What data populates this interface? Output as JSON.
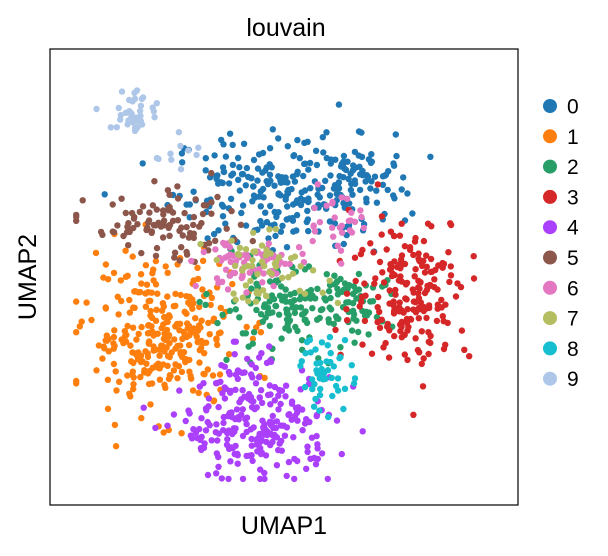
{
  "chart_data": {
    "type": "scatter",
    "title": "louvain",
    "xlabel": "UMAP1",
    "ylabel": "UMAP2",
    "xlim": [
      0,
      100
    ],
    "ylim": [
      0,
      100
    ],
    "grid": false,
    "ticks": false,
    "legend_position": "right",
    "series": [
      {
        "name": "0",
        "color": "#1f77b4",
        "clusters": [
          {
            "cx": 50,
            "cy": 71,
            "sx": 13,
            "sy": 7,
            "n": 230
          },
          {
            "cx": 66,
            "cy": 73,
            "sx": 5,
            "sy": 4,
            "n": 60
          }
        ]
      },
      {
        "name": "1",
        "color": "#ff7f0e",
        "clusters": [
          {
            "cx": 21,
            "cy": 36,
            "sx": 9,
            "sy": 9,
            "n": 300
          }
        ]
      },
      {
        "name": "2",
        "color": "#279e68",
        "clusters": [
          {
            "cx": 51,
            "cy": 42,
            "sx": 9,
            "sy": 5,
            "n": 150
          },
          {
            "cx": 68,
            "cy": 44,
            "sx": 4,
            "sy": 3,
            "n": 35
          }
        ]
      },
      {
        "name": "3",
        "color": "#d62728",
        "clusters": [
          {
            "cx": 80,
            "cy": 47,
            "sx": 7,
            "sy": 9,
            "n": 200
          }
        ]
      },
      {
        "name": "4",
        "color": "#aa40fc",
        "clusters": [
          {
            "cx": 44,
            "cy": 13,
            "sx": 9,
            "sy": 6,
            "n": 230
          },
          {
            "cx": 40,
            "cy": 26,
            "sx": 4,
            "sy": 4,
            "n": 30
          }
        ]
      },
      {
        "name": "5",
        "color": "#8c564b",
        "clusters": [
          {
            "cx": 22,
            "cy": 62,
            "sx": 9,
            "sy": 4,
            "n": 100
          }
        ]
      },
      {
        "name": "6",
        "color": "#e377c2",
        "clusters": [
          {
            "cx": 42,
            "cy": 53,
            "sx": 6,
            "sy": 3,
            "n": 80
          },
          {
            "cx": 61,
            "cy": 63,
            "sx": 4,
            "sy": 4,
            "n": 30
          }
        ]
      },
      {
        "name": "7",
        "color": "#b5bd61",
        "clusters": [
          {
            "cx": 46,
            "cy": 52,
            "sx": 7,
            "sy": 4,
            "n": 55
          }
        ]
      },
      {
        "name": "8",
        "color": "#17becf",
        "clusters": [
          {
            "cx": 60,
            "cy": 27,
            "sx": 3,
            "sy": 5,
            "n": 50
          }
        ]
      },
      {
        "name": "9",
        "color": "#aec7e8",
        "clusters": [
          {
            "cx": 15,
            "cy": 90,
            "sx": 3,
            "sy": 3,
            "n": 38
          },
          {
            "cx": 24,
            "cy": 80,
            "sx": 3,
            "sy": 2,
            "n": 10
          }
        ]
      }
    ]
  }
}
